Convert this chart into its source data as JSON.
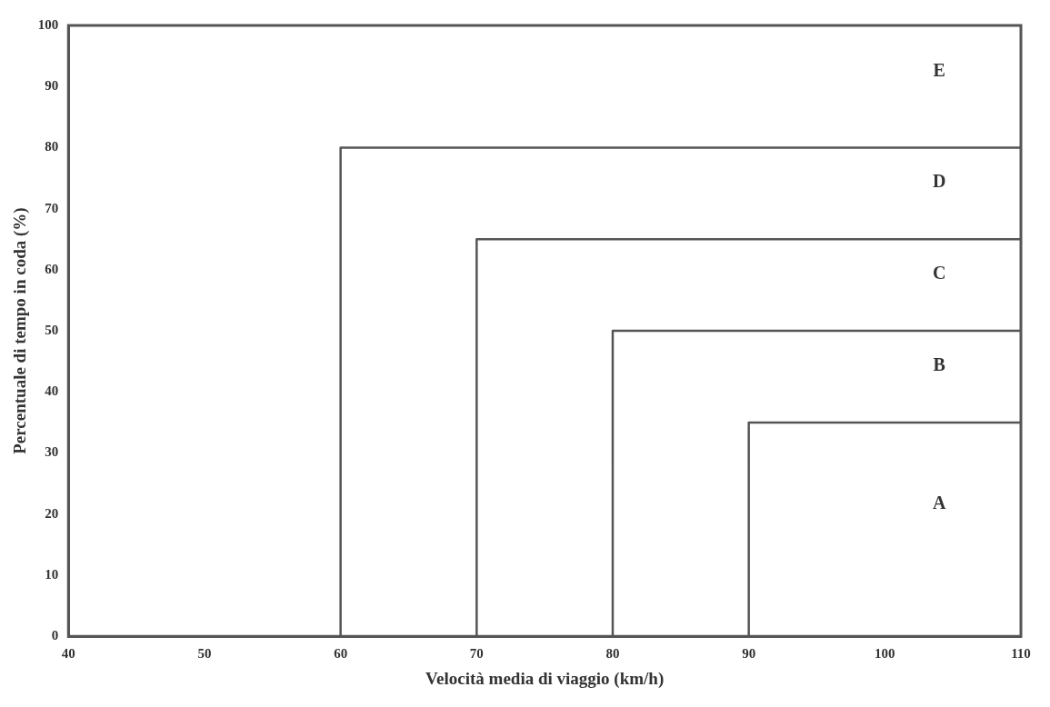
{
  "chart_data": {
    "type": "line",
    "xlabel": "Velocità media di viaggio (km/h)",
    "ylabel": "Percentuale di tempo in coda (%)",
    "xlim": [
      40,
      110
    ],
    "xticks": [
      40,
      50,
      60,
      70,
      80,
      90,
      100,
      110
    ],
    "ylim": [
      0,
      100
    ],
    "yticks": [
      0,
      10,
      20,
      30,
      40,
      50,
      60,
      70,
      80,
      90,
      100
    ],
    "grid": false,
    "legend": false,
    "marker": "none",
    "line_style": "solid",
    "series": [
      {
        "color": "#555555",
        "x": [
          90,
          90,
          110
        ],
        "values": [
          0,
          35,
          35
        ]
      },
      {
        "color": "#555555",
        "x": [
          80,
          80,
          110
        ],
        "values": [
          0,
          50,
          50
        ]
      },
      {
        "color": "#555555",
        "x": [
          70,
          70,
          110
        ],
        "values": [
          0,
          65,
          65
        ]
      },
      {
        "color": "#555555",
        "x": [
          60,
          60,
          110
        ],
        "values": [
          0,
          80,
          80
        ]
      }
    ],
    "annotations": [
      "A",
      "B",
      "C",
      "D",
      "E"
    ]
  }
}
